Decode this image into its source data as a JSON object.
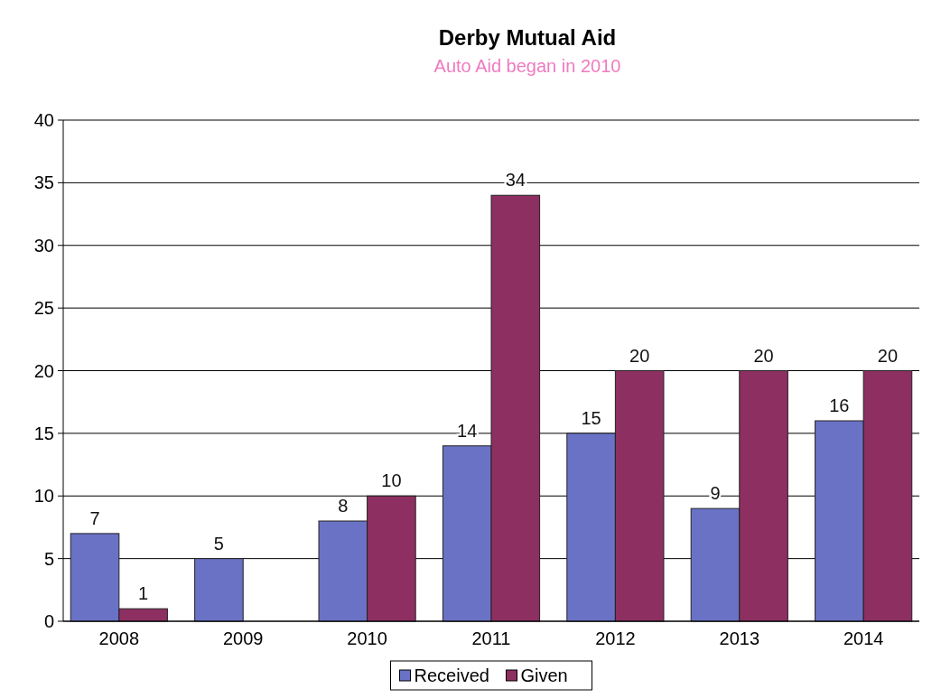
{
  "chart_data": {
    "type": "bar",
    "title": "Derby Mutual Aid",
    "subtitle": "Auto Aid began in 2010",
    "categories": [
      "2008",
      "2009",
      "2010",
      "2011",
      "2012",
      "2013",
      "2014"
    ],
    "series": [
      {
        "name": "Received",
        "color": "#6a72c6",
        "values": [
          7,
          5,
          8,
          14,
          15,
          9,
          16
        ]
      },
      {
        "name": "Given",
        "color": "#8e2f62",
        "values": [
          1,
          null,
          10,
          34,
          20,
          20,
          20
        ]
      }
    ],
    "ylim": [
      0,
      40
    ],
    "yticks": [
      0,
      5,
      10,
      15,
      20,
      25,
      30,
      35,
      40
    ],
    "grid": "y",
    "legend": "bottom",
    "data_labels": true
  }
}
